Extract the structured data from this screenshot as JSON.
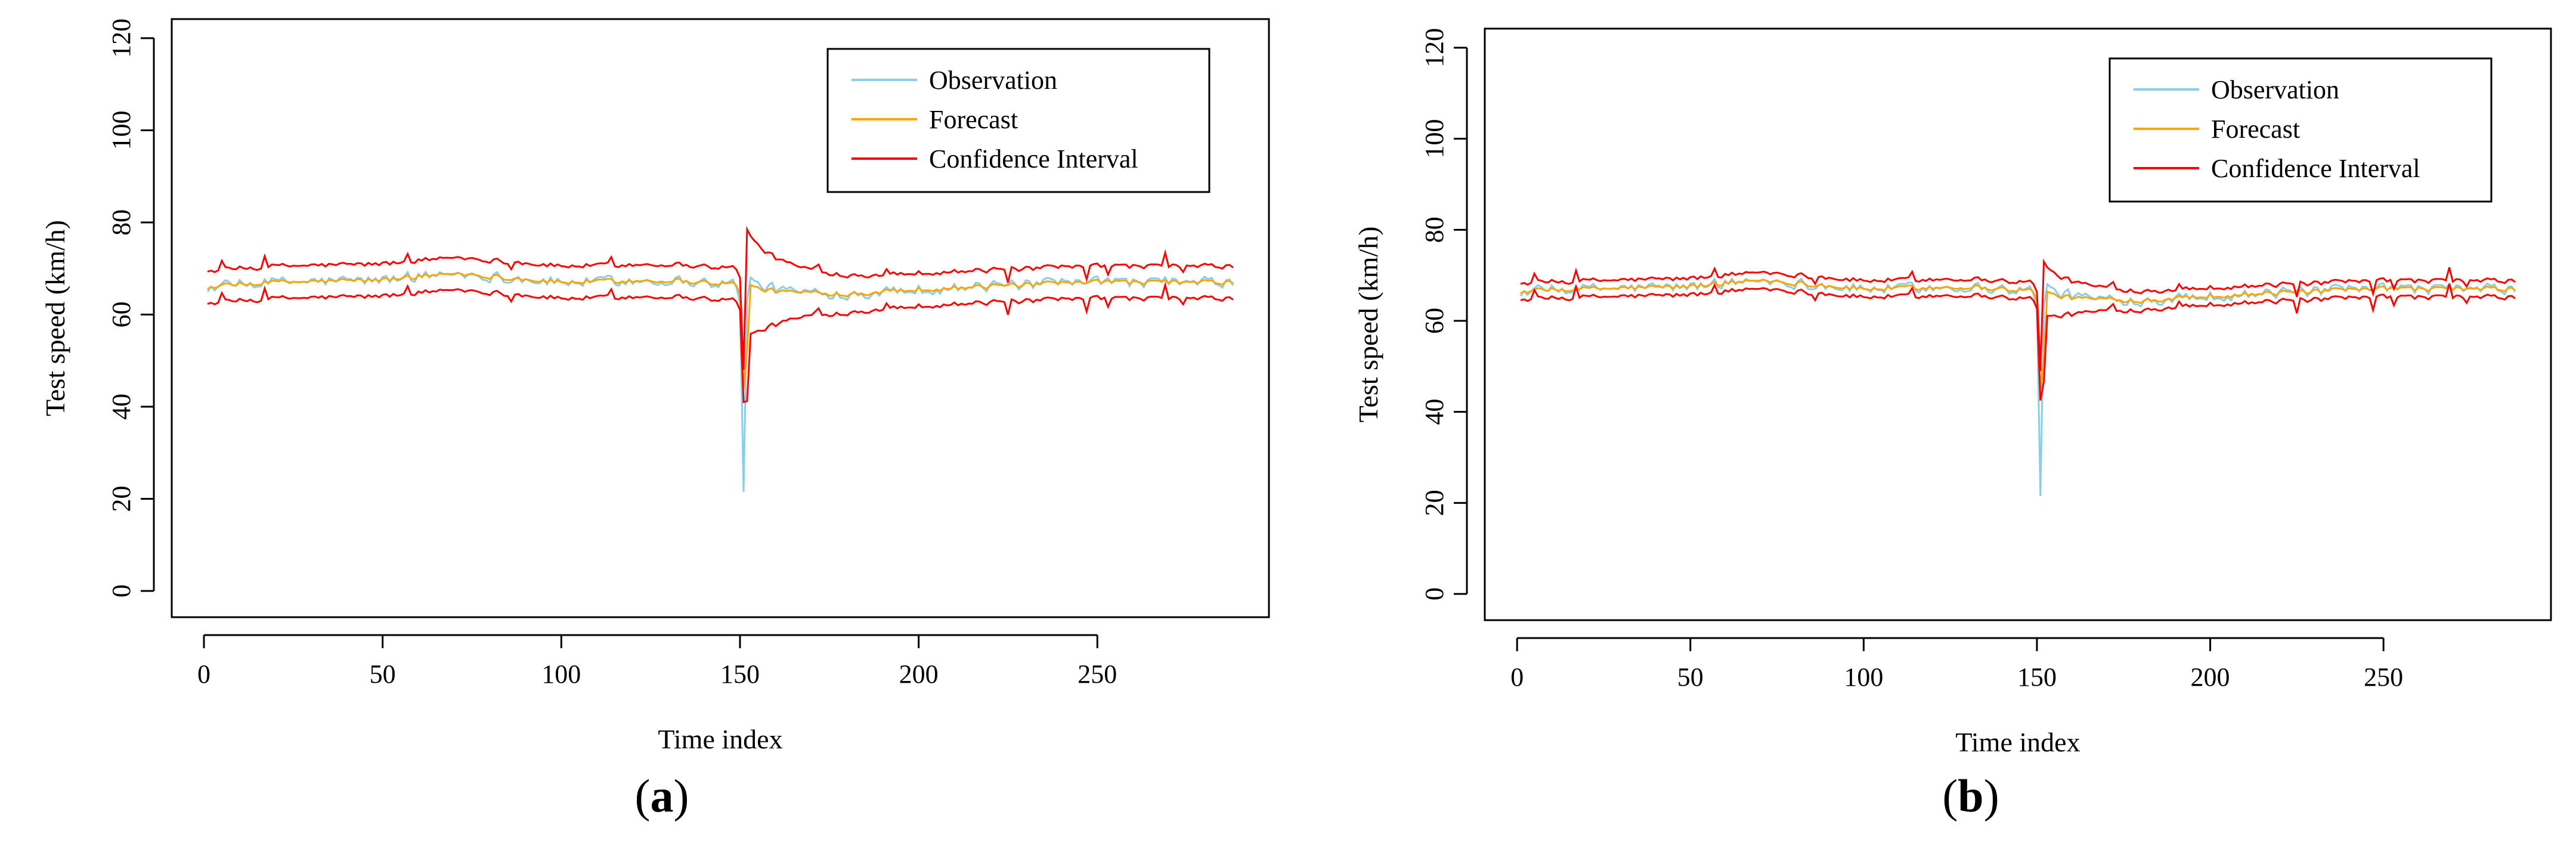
{
  "colors": {
    "observation": "#87CEEB",
    "forecast": "#FFA500",
    "confidence": "#FF0000",
    "axis": "#000000"
  },
  "chart_data": [
    {
      "type": "line",
      "panel": "(a)",
      "panel_paren_open": "(",
      "panel_letter": "a",
      "panel_paren_close": ")",
      "xlabel": "Time index",
      "ylabel": "Test speed (km/h)",
      "xlim": [
        1,
        288
      ],
      "ylim": [
        0,
        120
      ],
      "xticks": [
        0,
        50,
        100,
        150,
        200,
        250
      ],
      "yticks": [
        0,
        20,
        40,
        60,
        80,
        100,
        120
      ],
      "legend_position": "top-right",
      "legend": [
        "Observation",
        "Forecast",
        "Confidence Interval"
      ],
      "grid": false,
      "ci_halfwidth_normal": 3.5,
      "ci_halfwidth_peak": 12,
      "anomaly": {
        "t": 151,
        "observation_min": 21.5,
        "forecast_min": 44,
        "ci_lower_min": 41,
        "ci_upper_max": 78.5
      },
      "baseline_keypoints": [
        [
          1,
          66
        ],
        [
          20,
          67
        ],
        [
          50,
          67.5
        ],
        [
          70,
          69
        ],
        [
          100,
          67
        ],
        [
          130,
          67.5
        ],
        [
          150,
          66.5
        ],
        [
          160,
          65
        ],
        [
          180,
          64.5
        ],
        [
          200,
          65.5
        ],
        [
          250,
          67
        ],
        [
          288,
          67
        ]
      ],
      "series": [
        {
          "name": "Observation",
          "color": "#87CEEB"
        },
        {
          "name": "Forecast",
          "color": "#FFA500"
        },
        {
          "name": "Confidence Interval",
          "color": "#FF0000"
        }
      ]
    },
    {
      "type": "line",
      "panel": "(b)",
      "panel_paren_open": "(",
      "panel_letter": "b",
      "panel_paren_close": ")",
      "xlabel": "Time index",
      "ylabel": "Test speed (km/h)",
      "xlim": [
        1,
        288
      ],
      "ylim": [
        0,
        120
      ],
      "xticks": [
        0,
        50,
        100,
        150,
        200,
        250
      ],
      "yticks": [
        0,
        20,
        40,
        60,
        80,
        100,
        120
      ],
      "legend_position": "top-right",
      "legend": [
        "Observation",
        "Forecast",
        "Confidence Interval"
      ],
      "grid": false,
      "ci_halfwidth_normal": 1.8,
      "ci_halfwidth_peak": 6,
      "anomaly": {
        "t": 151,
        "observation_min": 21.5,
        "forecast_min": 45,
        "ci_lower_min": 42.5,
        "ci_upper_max": 73
      },
      "baseline_keypoints": [
        [
          1,
          66.5
        ],
        [
          20,
          67
        ],
        [
          50,
          67.5
        ],
        [
          70,
          69
        ],
        [
          100,
          67
        ],
        [
          130,
          67.5
        ],
        [
          150,
          66.5
        ],
        [
          160,
          65
        ],
        [
          180,
          64.5
        ],
        [
          200,
          65.5
        ],
        [
          250,
          67
        ],
        [
          288,
          67
        ]
      ],
      "series": [
        {
          "name": "Observation",
          "color": "#87CEEB"
        },
        {
          "name": "Forecast",
          "color": "#FFA500"
        },
        {
          "name": "Confidence Interval",
          "color": "#FF0000"
        }
      ]
    }
  ]
}
